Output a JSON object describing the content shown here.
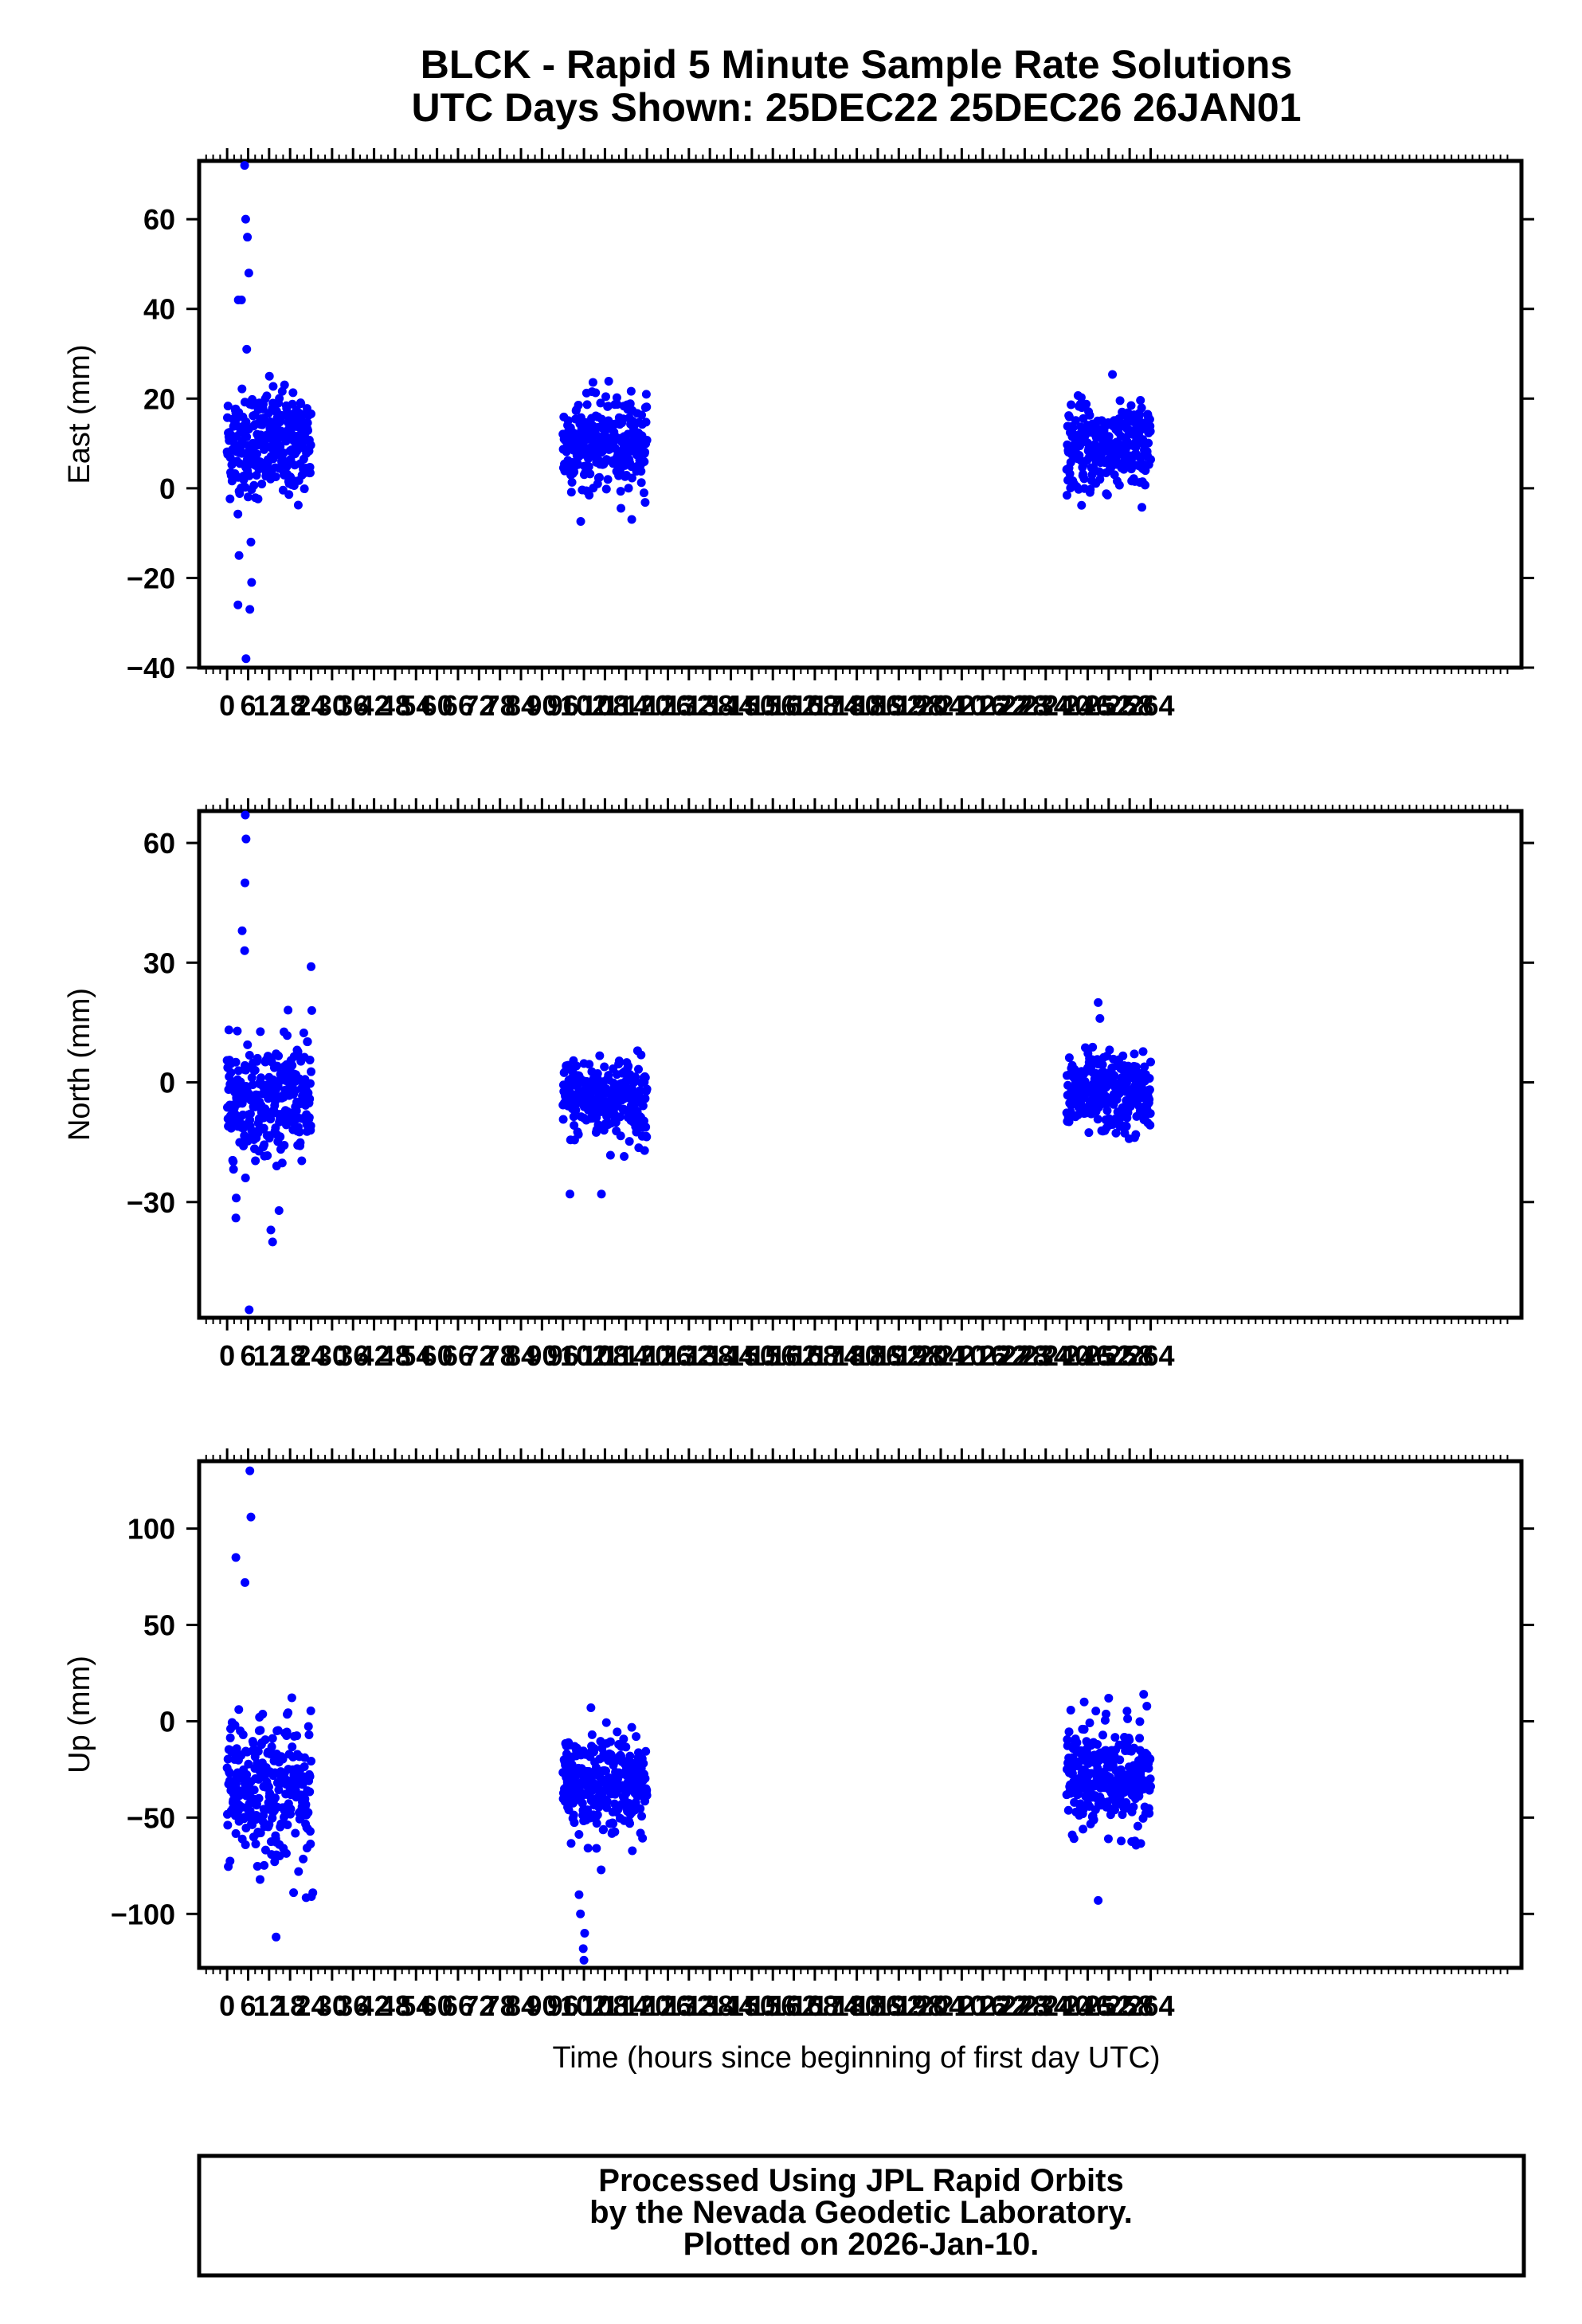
{
  "title_line1": "BLCK - Rapid 5 Minute Sample Rate Solutions",
  "title_line2": "UTC Days Shown:  25DEC22 25DEC26 26JAN01",
  "xlabel": "Time (hours since beginning of first day UTC)",
  "footer": [
    "Processed Using JPL Rapid Orbits",
    "by the Nevada Geodetic Laboratory.",
    "Plotted on 2026-Jan-10."
  ],
  "chart_data": {
    "type": "scatter",
    "point_color": "#0000ff",
    "x_range": [
      -8,
      370
    ],
    "x_ticks": [
      0,
      6,
      12,
      18,
      24,
      30,
      36,
      42,
      48,
      54,
      60,
      66,
      72,
      78,
      84,
      90,
      96,
      102,
      108,
      114,
      120,
      126,
      132,
      138,
      144,
      150,
      156,
      162,
      168,
      174,
      180,
      186,
      192,
      198,
      204,
      210,
      216,
      222,
      228,
      234,
      240,
      246,
      252,
      258,
      264
    ],
    "x_tick_labels": [
      "0",
      "6",
      "12",
      "18",
      "24",
      "30",
      "36",
      "42",
      "48",
      "54",
      "60",
      "66",
      "72",
      "78",
      "84",
      "90",
      "96",
      "102",
      "108",
      "114",
      "120",
      "126",
      "132",
      "138",
      "144",
      "150",
      "156",
      "162",
      "168",
      "174",
      "180",
      "186",
      "192",
      "198",
      "204",
      "210",
      "216",
      "222",
      "228",
      "234",
      "240",
      "246",
      "252",
      "258",
      "264"
    ],
    "panels": [
      {
        "name": "east",
        "ylabel": "East (mm)",
        "ylim": [
          -40,
          73
        ],
        "yticks": [
          -40,
          -20,
          0,
          20,
          40,
          60
        ],
        "ytick_labels": [
          "−40",
          "−20",
          "0",
          "20",
          "40",
          "60"
        ],
        "segments": [
          {
            "x_range": [
              0,
              24
            ],
            "center": 10,
            "spread": 6
          },
          {
            "x_range": [
              96,
              120
            ],
            "center": 10,
            "spread": 5
          },
          {
            "x_range": [
              240,
              264
            ],
            "center": 9,
            "spread": 5
          }
        ],
        "extremes": [
          [
            5,
            72
          ],
          [
            5.3,
            60
          ],
          [
            5.8,
            56
          ],
          [
            6.2,
            48
          ],
          [
            4.1,
            42
          ],
          [
            3.2,
            42
          ],
          [
            5.6,
            31
          ],
          [
            3.1,
            -26
          ],
          [
            6.5,
            -27
          ],
          [
            5.4,
            -38
          ],
          [
            3.4,
            -15
          ],
          [
            6.8,
            -12
          ],
          [
            7,
            -21
          ]
        ]
      },
      {
        "name": "north",
        "ylabel": "North (mm)",
        "ylim": [
          -59,
          68
        ],
        "yticks": [
          -30,
          0,
          30,
          60
        ],
        "ytick_labels": [
          "−30",
          "0",
          "30",
          "60"
        ],
        "segments": [
          {
            "x_range": [
              0,
              24
            ],
            "center": -4,
            "spread": 7
          },
          {
            "x_range": [
              96,
              120
            ],
            "center": -4,
            "spread": 5
          },
          {
            "x_range": [
              240,
              264
            ],
            "center": -3,
            "spread": 5
          }
        ],
        "extremes": [
          [
            5.2,
            67
          ],
          [
            5.4,
            61
          ],
          [
            5.1,
            50
          ],
          [
            4.3,
            38
          ],
          [
            5.0,
            33
          ],
          [
            2.6,
            -29
          ],
          [
            2.5,
            -34
          ],
          [
            6.3,
            -57
          ],
          [
            13,
            -40
          ],
          [
            12.5,
            -37
          ],
          [
            24,
            29
          ],
          [
            24.2,
            18
          ],
          [
            98,
            -28
          ],
          [
            107,
            -28
          ],
          [
            249,
            20
          ],
          [
            249.5,
            16
          ]
        ]
      },
      {
        "name": "up",
        "ylabel": "Up (mm)",
        "ylim": [
          -128,
          135
        ],
        "yticks": [
          -100,
          -50,
          0,
          50,
          100
        ],
        "ytick_labels": [
          "−100",
          "−50",
          "0",
          "50",
          "100"
        ],
        "segments": [
          {
            "x_range": [
              0,
              24
            ],
            "center": -35,
            "spread": 18
          },
          {
            "x_range": [
              96,
              120
            ],
            "center": -32,
            "spread": 12
          },
          {
            "x_range": [
              240,
              264
            ],
            "center": -30,
            "spread": 13
          }
        ],
        "extremes": [
          [
            6.5,
            130
          ],
          [
            6.8,
            106
          ],
          [
            2.5,
            85
          ],
          [
            5.1,
            72
          ],
          [
            14,
            -112
          ],
          [
            24.5,
            -89
          ],
          [
            24.1,
            -91
          ],
          [
            102,
            -124
          ],
          [
            101.8,
            -118
          ],
          [
            102.2,
            -110
          ],
          [
            101,
            -100
          ],
          [
            100.6,
            -90
          ],
          [
            104,
            7
          ],
          [
            249,
            -93
          ],
          [
            245,
            10
          ],
          [
            252,
            12
          ],
          [
            262,
            14
          ]
        ]
      }
    ]
  }
}
